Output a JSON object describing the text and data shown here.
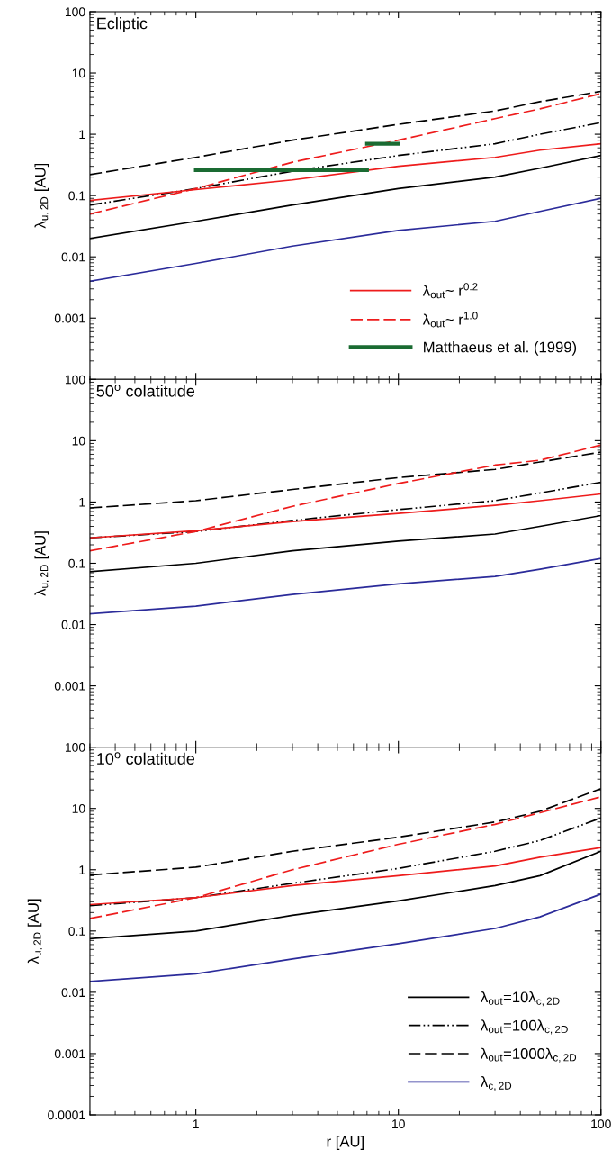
{
  "chart_data": [
    {
      "type": "line",
      "title": "Ecliptic",
      "ylabel": "λ$_{u,2D}$ [AU]",
      "log": "xy",
      "xlim": [
        0.3,
        100
      ],
      "xticks": [
        1,
        10,
        100
      ],
      "ylim": [
        0.0001,
        100
      ],
      "yticks": [
        0.001,
        0.01,
        0.1,
        1,
        10,
        100
      ],
      "tick_labels": "y",
      "legend": "bottom right",
      "grid": false,
      "x": [
        0.3,
        1,
        3,
        10,
        30,
        50,
        100
      ],
      "series": [
        {
          "color": "#000000",
          "line_style": "solid",
          "values": [
            0.02,
            0.038,
            0.07,
            0.13,
            0.2,
            0.28,
            0.45
          ]
        },
        {
          "color": "#000000",
          "line_style": "dashdotdot",
          "values": [
            0.07,
            0.13,
            0.25,
            0.45,
            0.7,
            1.0,
            1.55
          ]
        },
        {
          "color": "#000000",
          "line_style": "dashed",
          "values": [
            0.22,
            0.42,
            0.8,
            1.45,
            2.4,
            3.4,
            5.0
          ]
        },
        {
          "color": "#2b2b9a",
          "line_style": "solid",
          "values": [
            0.004,
            0.0078,
            0.015,
            0.027,
            0.038,
            0.055,
            0.09
          ]
        },
        {
          "name": "λ$_{out}$~ r$^{0.2}$",
          "color": "#ee1c1c",
          "line_style": "solid",
          "values": [
            0.083,
            0.125,
            0.18,
            0.3,
            0.42,
            0.55,
            0.7
          ]
        },
        {
          "name": "λ$_{out}$~ r$^{1.0}$",
          "color": "#ee1c1c",
          "line_style": "dashed",
          "values": [
            0.05,
            0.13,
            0.35,
            0.8,
            1.8,
            2.6,
            4.6
          ]
        },
        {
          "name": "Matthaeus et al. (1999)",
          "color": "#1a6b32",
          "line_style": "solid",
          "x": [
            1,
            7
          ],
          "values": [
            0.26,
            0.26
          ]
        },
        {
          "color": "#1a6b32",
          "line_style": "solid",
          "x": [
            7,
            10
          ],
          "values": [
            0.7,
            0.7
          ]
        }
      ]
    },
    {
      "type": "line",
      "title": "50$^{o}$ colatitude",
      "ylabel": "λ$_{u,2D}$ [AU]",
      "log": "xy",
      "xlim": [
        0.3,
        100
      ],
      "xticks": [
        1,
        10,
        100
      ],
      "ylim": [
        0.0001,
        100
      ],
      "yticks": [
        0.001,
        0.01,
        0.1,
        1,
        10,
        100
      ],
      "tick_labels": "y",
      "grid": false,
      "x": [
        0.3,
        1,
        3,
        10,
        30,
        50,
        100
      ],
      "series": [
        {
          "color": "#000000",
          "line_style": "solid",
          "values": [
            0.073,
            0.1,
            0.16,
            0.23,
            0.3,
            0.4,
            0.6
          ]
        },
        {
          "color": "#000000",
          "line_style": "dashdotdot",
          "values": [
            0.26,
            0.33,
            0.5,
            0.75,
            1.05,
            1.4,
            2.1
          ]
        },
        {
          "color": "#000000",
          "line_style": "dashed",
          "values": [
            0.8,
            1.05,
            1.6,
            2.5,
            3.4,
            4.5,
            6.5
          ]
        },
        {
          "color": "#2b2b9a",
          "line_style": "solid",
          "values": [
            0.015,
            0.02,
            0.031,
            0.046,
            0.061,
            0.08,
            0.12
          ]
        },
        {
          "color": "#ee1c1c",
          "line_style": "solid",
          "values": [
            0.26,
            0.34,
            0.48,
            0.65,
            0.88,
            1.05,
            1.35
          ]
        },
        {
          "color": "#ee1c1c",
          "line_style": "dashed",
          "values": [
            0.16,
            0.33,
            0.85,
            2.0,
            4.0,
            4.8,
            8.5
          ]
        }
      ]
    },
    {
      "type": "line",
      "title": "10$^{o}$ colatitude",
      "xlabel": "r [AU]",
      "ylabel": "λ$_{u,2D}$ [AU]",
      "log": "xy",
      "xlim": [
        0.3,
        100
      ],
      "xticks": [
        1,
        10,
        100
      ],
      "ylim": [
        0.0001,
        100
      ],
      "yticks": [
        0.0001,
        0.001,
        0.01,
        0.1,
        1,
        10,
        100
      ],
      "legend": "bottom right",
      "grid": false,
      "x": [
        0.3,
        1,
        3,
        10,
        30,
        50,
        100
      ],
      "series": [
        {
          "name": "λ$_{out}$=10λ$_{c,2D}$",
          "color": "#000000",
          "line_style": "solid",
          "values": [
            0.075,
            0.1,
            0.18,
            0.31,
            0.55,
            0.8,
            2.0
          ]
        },
        {
          "name": "λ$_{out}$=100λ$_{c,2D}$",
          "color": "#000000",
          "line_style": "dashdotdot",
          "values": [
            0.26,
            0.35,
            0.6,
            1.05,
            2.0,
            3.0,
            7
          ]
        },
        {
          "name": "λ$_{out}$=1000λ$_{c,2D}$",
          "color": "#000000",
          "line_style": "dashed",
          "values": [
            0.82,
            1.1,
            2.0,
            3.4,
            6.0,
            9,
            21
          ]
        },
        {
          "name": "λ$_{c,2D}$",
          "color": "#2b2b9a",
          "line_style": "solid",
          "values": [
            0.015,
            0.02,
            0.035,
            0.062,
            0.11,
            0.17,
            0.4
          ]
        },
        {
          "color": "#ee1c1c",
          "line_style": "solid",
          "values": [
            0.27,
            0.35,
            0.55,
            0.8,
            1.15,
            1.6,
            2.3
          ]
        },
        {
          "color": "#ee1c1c",
          "line_style": "dashed",
          "values": [
            0.16,
            0.35,
            1.0,
            2.6,
            5.5,
            8.5,
            15.5
          ]
        }
      ]
    }
  ]
}
